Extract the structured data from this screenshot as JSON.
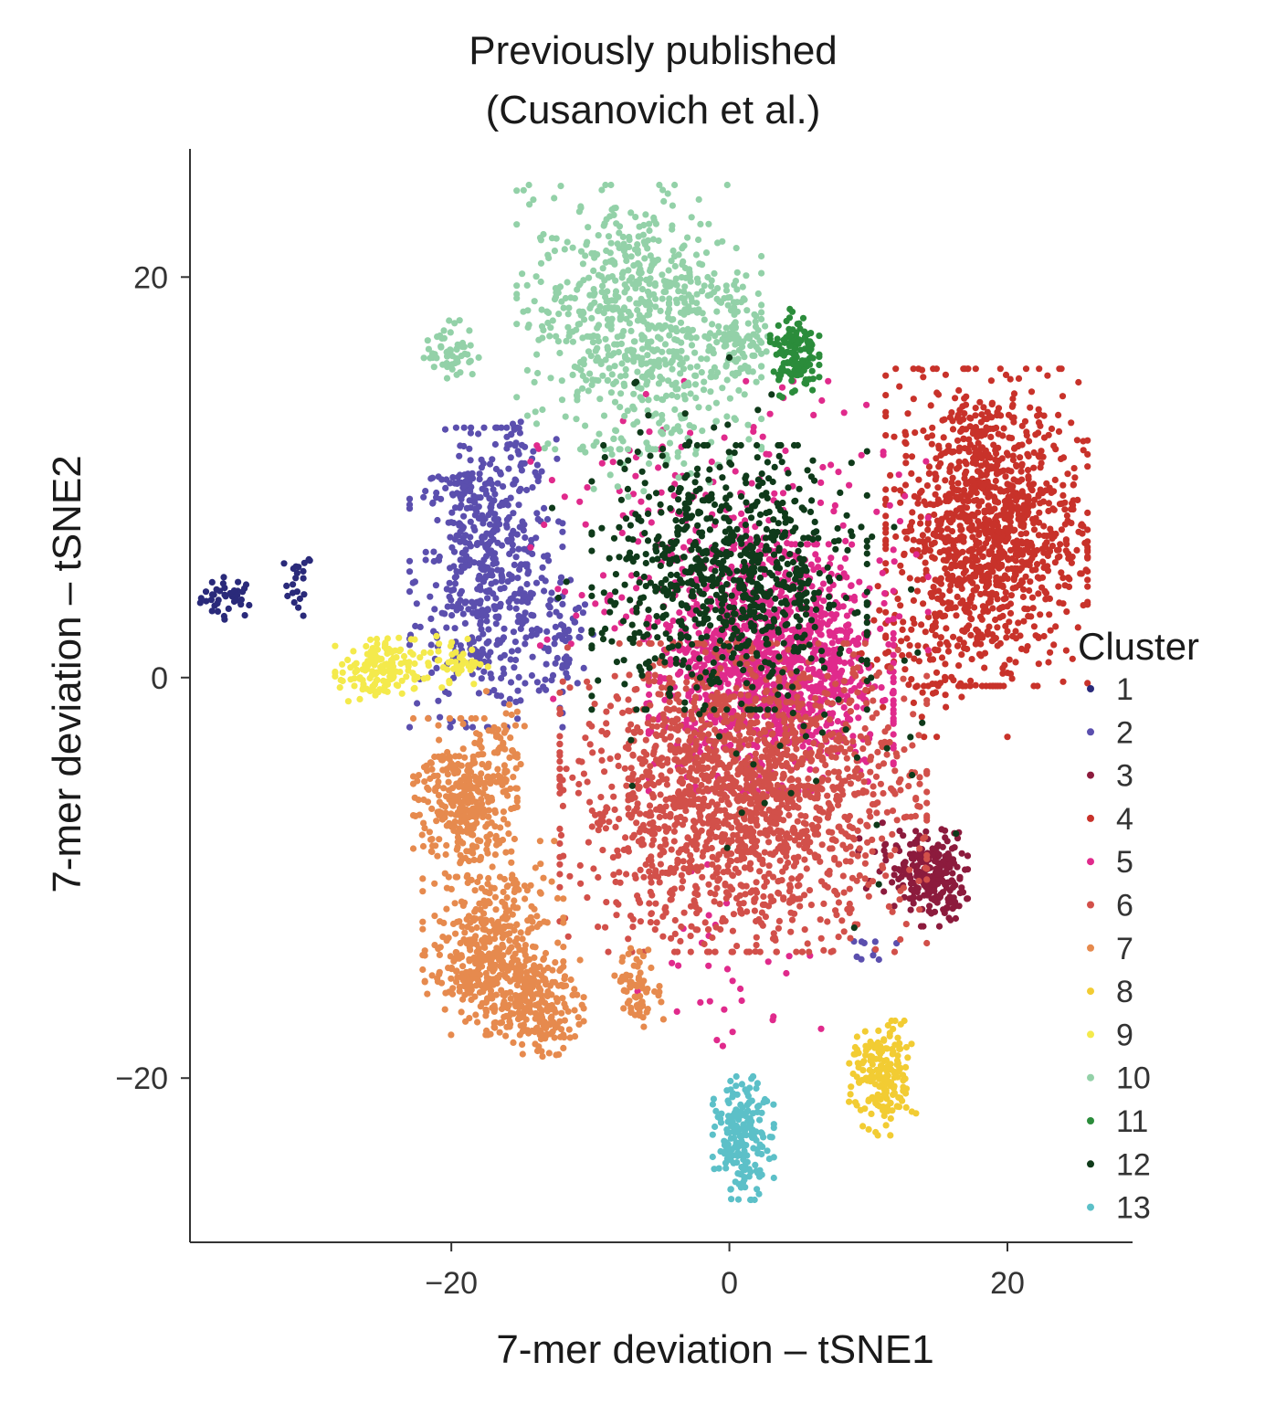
{
  "chart_data": {
    "type": "scatter",
    "title_line1": "Previously published",
    "title_line2": "(Cusanovich et al.)",
    "xlabel": "7-mer deviation – tSNE1",
    "ylabel": "7-mer deviation – tSNE2",
    "xlim": [
      -38.8,
      29
    ],
    "ylim": [
      -28.2,
      26.4
    ],
    "x_ticks": [
      -20,
      0,
      20
    ],
    "x_tick_labels": [
      "−20",
      "0",
      "20"
    ],
    "y_ticks": [
      20,
      0,
      -20
    ],
    "y_tick_labels": [
      "20",
      "0",
      "−20"
    ],
    "legend": {
      "title": "Cluster",
      "position": "right",
      "labels": [
        "1",
        "2",
        "3",
        "4",
        "5",
        "6",
        "7",
        "8",
        "9",
        "10",
        "11",
        "12",
        "13"
      ]
    },
    "series": [
      {
        "name": "1",
        "color": "#2a2a7a",
        "blobs": [
          {
            "cx": -36,
            "cy": 4,
            "sx": 1.0,
            "sy": 0.5,
            "n": 40
          },
          {
            "cx": -31,
            "cy": 4.7,
            "sx": 0.5,
            "sy": 0.8,
            "n": 22
          }
        ]
      },
      {
        "name": "2",
        "color": "#5b4fae",
        "blobs": [
          {
            "cx": -17.5,
            "cy": 5,
            "sx": 2.5,
            "sy": 3.4,
            "n": 520
          },
          {
            "cx": -19,
            "cy": 9.2,
            "sx": 1.0,
            "sy": 0.6,
            "n": 40
          },
          {
            "cx": -15.3,
            "cy": 11.3,
            "sx": 0.7,
            "sy": 1.1,
            "n": 30
          },
          {
            "cx": -12,
            "cy": 2,
            "sx": 1.0,
            "sy": 1.6,
            "n": 60
          },
          {
            "cx": 10.5,
            "cy": -13.5,
            "sx": 0.7,
            "sy": 0.3,
            "n": 10
          }
        ]
      },
      {
        "name": "3",
        "color": "#8c1b3d",
        "blobs": [
          {
            "cx": 14.5,
            "cy": -10,
            "sx": 1.2,
            "sy": 1.1,
            "n": 220
          },
          {
            "cx": 12,
            "cy": -9,
            "sx": 1.4,
            "sy": 0.8,
            "n": 30
          }
        ]
      },
      {
        "name": "4",
        "color": "#c8322a",
        "blobs": [
          {
            "cx": 18.5,
            "cy": 7.5,
            "sx": 3.3,
            "sy": 3.6,
            "n": 1150
          },
          {
            "cx": 14.5,
            "cy": 1,
            "sx": 2.5,
            "sy": 1.8,
            "n": 70
          }
        ]
      },
      {
        "name": "5",
        "color": "#e02a8c",
        "blobs": [
          {
            "cx": 3,
            "cy": 0.5,
            "sx": 4.0,
            "sy": 2.8,
            "n": 1200
          },
          {
            "cx": 0,
            "cy": 6,
            "sx": 6.5,
            "sy": 4.0,
            "n": 260
          },
          {
            "cx": 0,
            "cy": -14,
            "sx": 3.0,
            "sy": 2.5,
            "n": 30
          }
        ]
      },
      {
        "name": "6",
        "color": "#d2504a",
        "blobs": [
          {
            "cx": 1,
            "cy": -6,
            "sx": 6.0,
            "sy": 3.5,
            "n": 1750
          }
        ]
      },
      {
        "name": "7",
        "color": "#e68a4e",
        "blobs": [
          {
            "cx": -19,
            "cy": -6,
            "sx": 1.7,
            "sy": 1.8,
            "n": 340
          },
          {
            "cx": -17,
            "cy": -13,
            "sx": 2.3,
            "sy": 2.2,
            "n": 300
          },
          {
            "cx": -14,
            "cy": -16.5,
            "sx": 1.6,
            "sy": 1.1,
            "n": 200
          },
          {
            "cx": -17.5,
            "cy": -14.5,
            "sx": 2.0,
            "sy": 1.0,
            "n": 140
          },
          {
            "cx": -6.5,
            "cy": -15.5,
            "sx": 0.8,
            "sy": 0.9,
            "n": 70
          },
          {
            "cx": -16,
            "cy": -3,
            "sx": 1.0,
            "sy": 1.2,
            "n": 30
          }
        ]
      },
      {
        "name": "8",
        "color": "#f2cc33",
        "blobs": [
          {
            "cx": 11,
            "cy": -20,
            "sx": 1.1,
            "sy": 1.3,
            "n": 180
          }
        ]
      },
      {
        "name": "9",
        "color": "#f4ea4c",
        "blobs": [
          {
            "cx": -25.5,
            "cy": 0.3,
            "sx": 1.3,
            "sy": 0.8,
            "n": 140
          },
          {
            "cx": -20,
            "cy": 0.8,
            "sx": 1.2,
            "sy": 0.6,
            "n": 50
          }
        ]
      },
      {
        "name": "10",
        "color": "#93d1a8",
        "blobs": [
          {
            "cx": -6.5,
            "cy": 18,
            "sx": 4.0,
            "sy": 3.0,
            "n": 720
          },
          {
            "cx": -20,
            "cy": 16.3,
            "sx": 0.9,
            "sy": 0.7,
            "n": 55
          },
          {
            "cx": 1,
            "cy": 17,
            "sx": 1.0,
            "sy": 1.3,
            "n": 65
          },
          {
            "cx": -5,
            "cy": 12,
            "sx": 3.0,
            "sy": 1.5,
            "n": 60
          }
        ]
      },
      {
        "name": "11",
        "color": "#2b8c3b",
        "blobs": [
          {
            "cx": 4.7,
            "cy": 16.2,
            "sx": 0.8,
            "sy": 1.0,
            "n": 130
          }
        ]
      },
      {
        "name": "12",
        "color": "#0f3a1a",
        "blobs": [
          {
            "cx": 0,
            "cy": 5,
            "sx": 4.5,
            "sy": 3.0,
            "n": 760
          },
          {
            "cx": 2,
            "cy": -2,
            "sx": 6.5,
            "sy": 5.0,
            "n": 60
          },
          {
            "cx": -3,
            "cy": 12,
            "sx": 5.0,
            "sy": 2.0,
            "n": 20
          }
        ]
      },
      {
        "name": "13",
        "color": "#5cc0c8",
        "blobs": [
          {
            "cx": 1,
            "cy": -23,
            "sx": 1.0,
            "sy": 1.4,
            "n": 190
          }
        ]
      }
    ]
  }
}
